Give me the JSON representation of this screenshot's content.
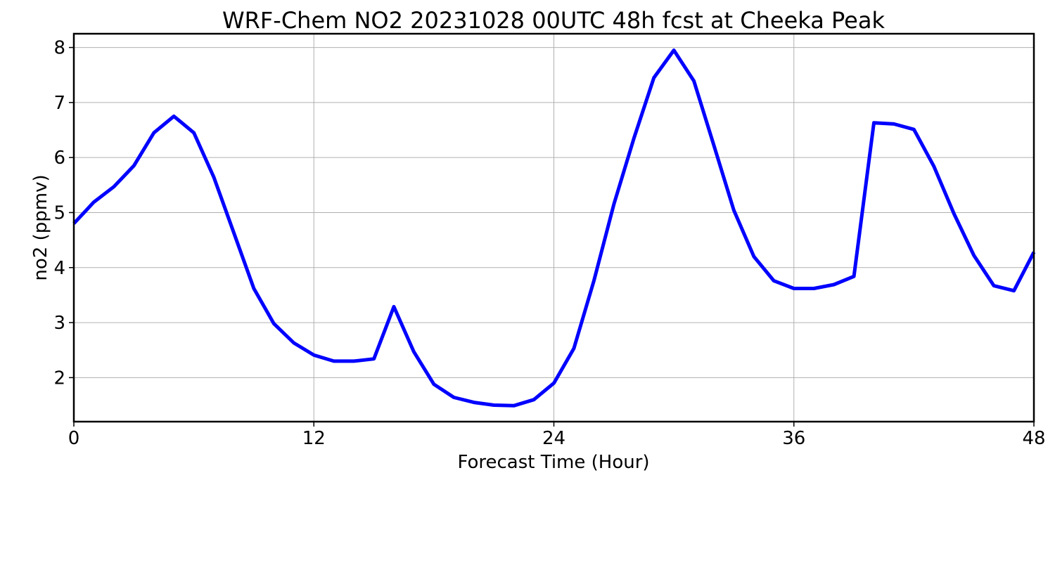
{
  "chart_data": {
    "type": "line",
    "title": "WRF-Chem NO2  20231028 00UTC 48h fcst at Cheeka Peak",
    "xlabel": "Forecast Time (Hour)",
    "ylabel": "no2  (ppmv)",
    "xlim": [
      0,
      48
    ],
    "ylim": [
      1.2,
      8.25
    ],
    "xticks": [
      0,
      12,
      24,
      36,
      48
    ],
    "yticks": [
      2,
      3,
      4,
      5,
      6,
      7,
      8
    ],
    "grid": true,
    "series": [
      {
        "color": "#0000ff",
        "x": [
          0,
          1,
          2,
          3,
          4,
          5,
          6,
          7,
          8,
          9,
          10,
          11,
          12,
          13,
          14,
          15,
          16,
          17,
          18,
          19,
          20,
          21,
          22,
          23,
          24,
          25,
          26,
          27,
          28,
          29,
          30,
          31,
          32,
          33,
          34,
          35,
          36,
          37,
          38,
          39,
          40,
          41,
          42,
          43,
          44,
          45,
          46,
          47,
          48
        ],
        "values": [
          4.8,
          5.19,
          5.47,
          5.85,
          6.45,
          6.75,
          6.45,
          5.64,
          4.63,
          3.62,
          2.98,
          2.63,
          2.41,
          2.3,
          2.3,
          2.34,
          3.29,
          2.47,
          1.88,
          1.64,
          1.55,
          1.5,
          1.49,
          1.6,
          1.9,
          2.53,
          3.76,
          5.15,
          6.35,
          7.45,
          7.95,
          7.39,
          6.22,
          5.04,
          4.2,
          3.76,
          3.62,
          3.62,
          3.69,
          3.84,
          6.63,
          6.61,
          6.51,
          5.84,
          4.98,
          4.22,
          3.67,
          3.58,
          4.28
        ]
      }
    ]
  }
}
